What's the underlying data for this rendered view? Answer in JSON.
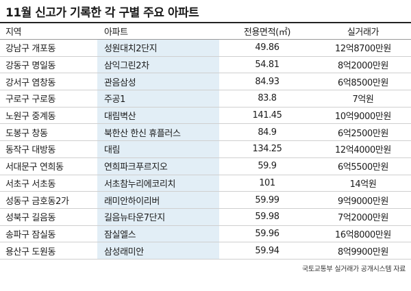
{
  "title": "11월 신고가 기록한 각 구별 주요 아파트",
  "columns": {
    "region": "지역",
    "apartment": "아파트",
    "area": "전용면적(㎡)",
    "price": "실거래가"
  },
  "rows": [
    {
      "region": "강남구 개포동",
      "apartment": "성원대치2단지",
      "area": "49.86",
      "price": "12억8700만원"
    },
    {
      "region": "강동구 명일동",
      "apartment": "삼익그린2차",
      "area": "54.81",
      "price": "8억2000만원"
    },
    {
      "region": "강서구 염창동",
      "apartment": "관음삼성",
      "area": "84.93",
      "price": "6억8500만원"
    },
    {
      "region": "구로구 구로동",
      "apartment": "주공1",
      "area": "83.8",
      "price": "7억원"
    },
    {
      "region": "노원구 중계동",
      "apartment": "대림벽산",
      "area": "141.45",
      "price": "10억9000만원"
    },
    {
      "region": "도봉구 창동",
      "apartment": "북한산 한신 휴플러스",
      "area": "84.9",
      "price": "6억2500만원"
    },
    {
      "region": "동작구 대방동",
      "apartment": "대림",
      "area": "134.25",
      "price": "12억4000만원"
    },
    {
      "region": "서대문구 연희동",
      "apartment": "연희파크푸르지오",
      "area": "59.9",
      "price": "6억5500만원"
    },
    {
      "region": "서초구 서초동",
      "apartment": "서초참누리에코리치",
      "area": "101",
      "price": "14억원"
    },
    {
      "region": "성동구 금호동2가",
      "apartment": "래미안하이리버",
      "area": "59.99",
      "price": "9억9000만원"
    },
    {
      "region": "성북구 길음동",
      "apartment": "길음뉴타운7단지",
      "area": "59.98",
      "price": "7억2000만원"
    },
    {
      "region": "송파구 잠실동",
      "apartment": "잠실엘스",
      "area": "59.96",
      "price": "16억8000만원"
    },
    {
      "region": "용산구 도원동",
      "apartment": "삼성래미안",
      "area": "59.94",
      "price": "8억9900만원"
    }
  ],
  "source": "국토교통부 실거래가 공개시스템 자료",
  "colors": {
    "apartment_column_bg": "#e2eef6",
    "rule": "#222222"
  }
}
